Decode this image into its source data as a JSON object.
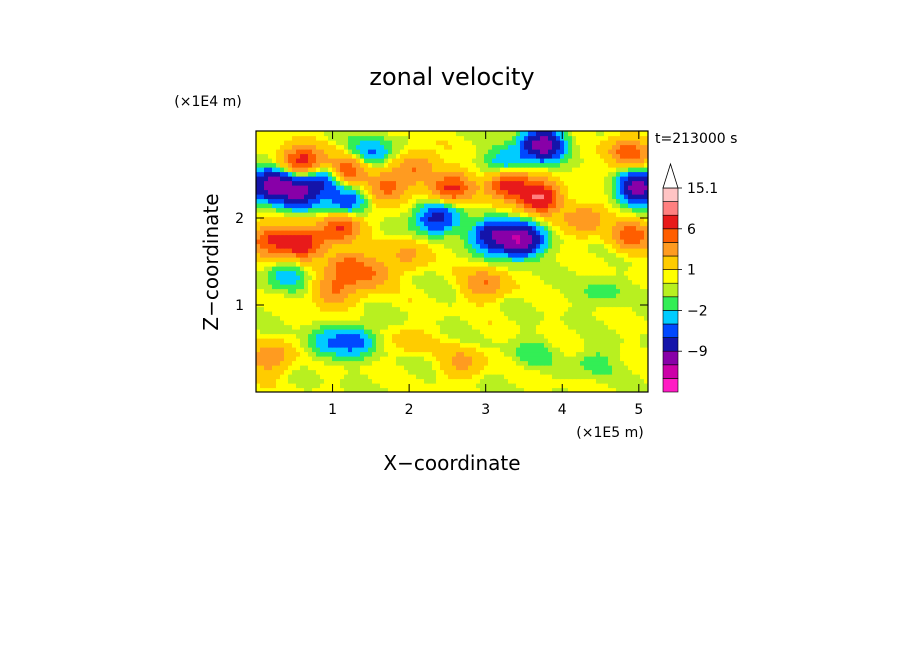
{
  "chart_data": {
    "type": "heatmap",
    "title": "zonal velocity",
    "xlabel": "X−coordinate",
    "ylabel": "Z−coordinate",
    "x_scale_label": "(×1E5 m)",
    "y_scale_label": "(×1E4 m)",
    "time_label": "t=213000 s",
    "xlim": [
      0,
      5.12
    ],
    "ylim": [
      0,
      3.0
    ],
    "x_ticks": [
      {
        "value": 1,
        "label": "1"
      },
      {
        "value": 2,
        "label": "2"
      },
      {
        "value": 3,
        "label": "3"
      },
      {
        "value": 4,
        "label": "4"
      },
      {
        "value": 5,
        "label": "5"
      }
    ],
    "y_ticks": [
      {
        "value": 1,
        "label": "1"
      },
      {
        "value": 2,
        "label": "2"
      }
    ],
    "colorbar": {
      "colors": [
        "#ff1cc4",
        "#cc00a8",
        "#8800a8",
        "#1414aa",
        "#0048ff",
        "#00ccff",
        "#33ee55",
        "#b8f020",
        "#ffff00",
        "#ffcc00",
        "#ff9b20",
        "#ff5e00",
        "#e81a1a",
        "#ff8080",
        "#ffc4c4"
      ],
      "labels": [
        {
          "value": "15.1",
          "at_band": 14
        },
        {
          "value": "6",
          "at_band": 11
        },
        {
          "value": "1",
          "at_band": 8
        },
        {
          "value": "−2",
          "at_band": 5
        },
        {
          "value": "−9",
          "at_band": 2
        }
      ],
      "extend_top": true
    },
    "features": [
      {
        "x": 0.2,
        "z": 2.4,
        "v": -8
      },
      {
        "x": 0.55,
        "z": 2.3,
        "v": -7
      },
      {
        "x": 0.6,
        "z": 2.65,
        "v": 6
      },
      {
        "x": 0.9,
        "z": 2.45,
        "v": -4
      },
      {
        "x": 1.2,
        "z": 2.55,
        "v": 5
      },
      {
        "x": 1.2,
        "z": 2.2,
        "v": -4
      },
      {
        "x": 1.5,
        "z": 2.75,
        "v": -3
      },
      {
        "x": 1.7,
        "z": 2.35,
        "v": 4
      },
      {
        "x": 0.6,
        "z": 1.7,
        "v": 6
      },
      {
        "x": 1.1,
        "z": 1.9,
        "v": 5
      },
      {
        "x": 0.2,
        "z": 1.75,
        "v": 5
      },
      {
        "x": 0.4,
        "z": 1.35,
        "v": -2
      },
      {
        "x": 1.0,
        "z": 1.15,
        "v": 3
      },
      {
        "x": 1.5,
        "z": 1.35,
        "v": 3
      },
      {
        "x": 2.1,
        "z": 2.6,
        "v": 3
      },
      {
        "x": 2.35,
        "z": 2.0,
        "v": -5
      },
      {
        "x": 2.55,
        "z": 2.35,
        "v": 5
      },
      {
        "x": 3.1,
        "z": 1.8,
        "v": -6
      },
      {
        "x": 3.45,
        "z": 1.75,
        "v": -9
      },
      {
        "x": 3.7,
        "z": 2.25,
        "v": 7
      },
      {
        "x": 3.3,
        "z": 2.4,
        "v": 6
      },
      {
        "x": 3.75,
        "z": 2.85,
        "v": -8
      },
      {
        "x": 3.3,
        "z": 2.65,
        "v": -3
      },
      {
        "x": 4.3,
        "z": 2.0,
        "v": 3
      },
      {
        "x": 5.0,
        "z": 2.35,
        "v": -8
      },
      {
        "x": 4.85,
        "z": 2.75,
        "v": 4
      },
      {
        "x": 4.9,
        "z": 1.8,
        "v": 4
      },
      {
        "x": 3.0,
        "z": 1.25,
        "v": 3
      },
      {
        "x": 4.5,
        "z": 1.15,
        "v": -1
      },
      {
        "x": 0.9,
        "z": 0.55,
        "v": -2
      },
      {
        "x": 1.3,
        "z": 0.6,
        "v": -3
      },
      {
        "x": 0.2,
        "z": 0.4,
        "v": 3
      },
      {
        "x": 3.6,
        "z": 0.45,
        "v": -1
      },
      {
        "x": 4.4,
        "z": 0.35,
        "v": -1
      },
      {
        "x": 2.0,
        "z": 0.6,
        "v": 1
      },
      {
        "x": 2.7,
        "z": 0.35,
        "v": 2
      },
      {
        "x": 1.2,
        "z": 1.45,
        "v": 4
      },
      {
        "x": 2.0,
        "z": 1.6,
        "v": 2
      }
    ],
    "grid": false
  }
}
